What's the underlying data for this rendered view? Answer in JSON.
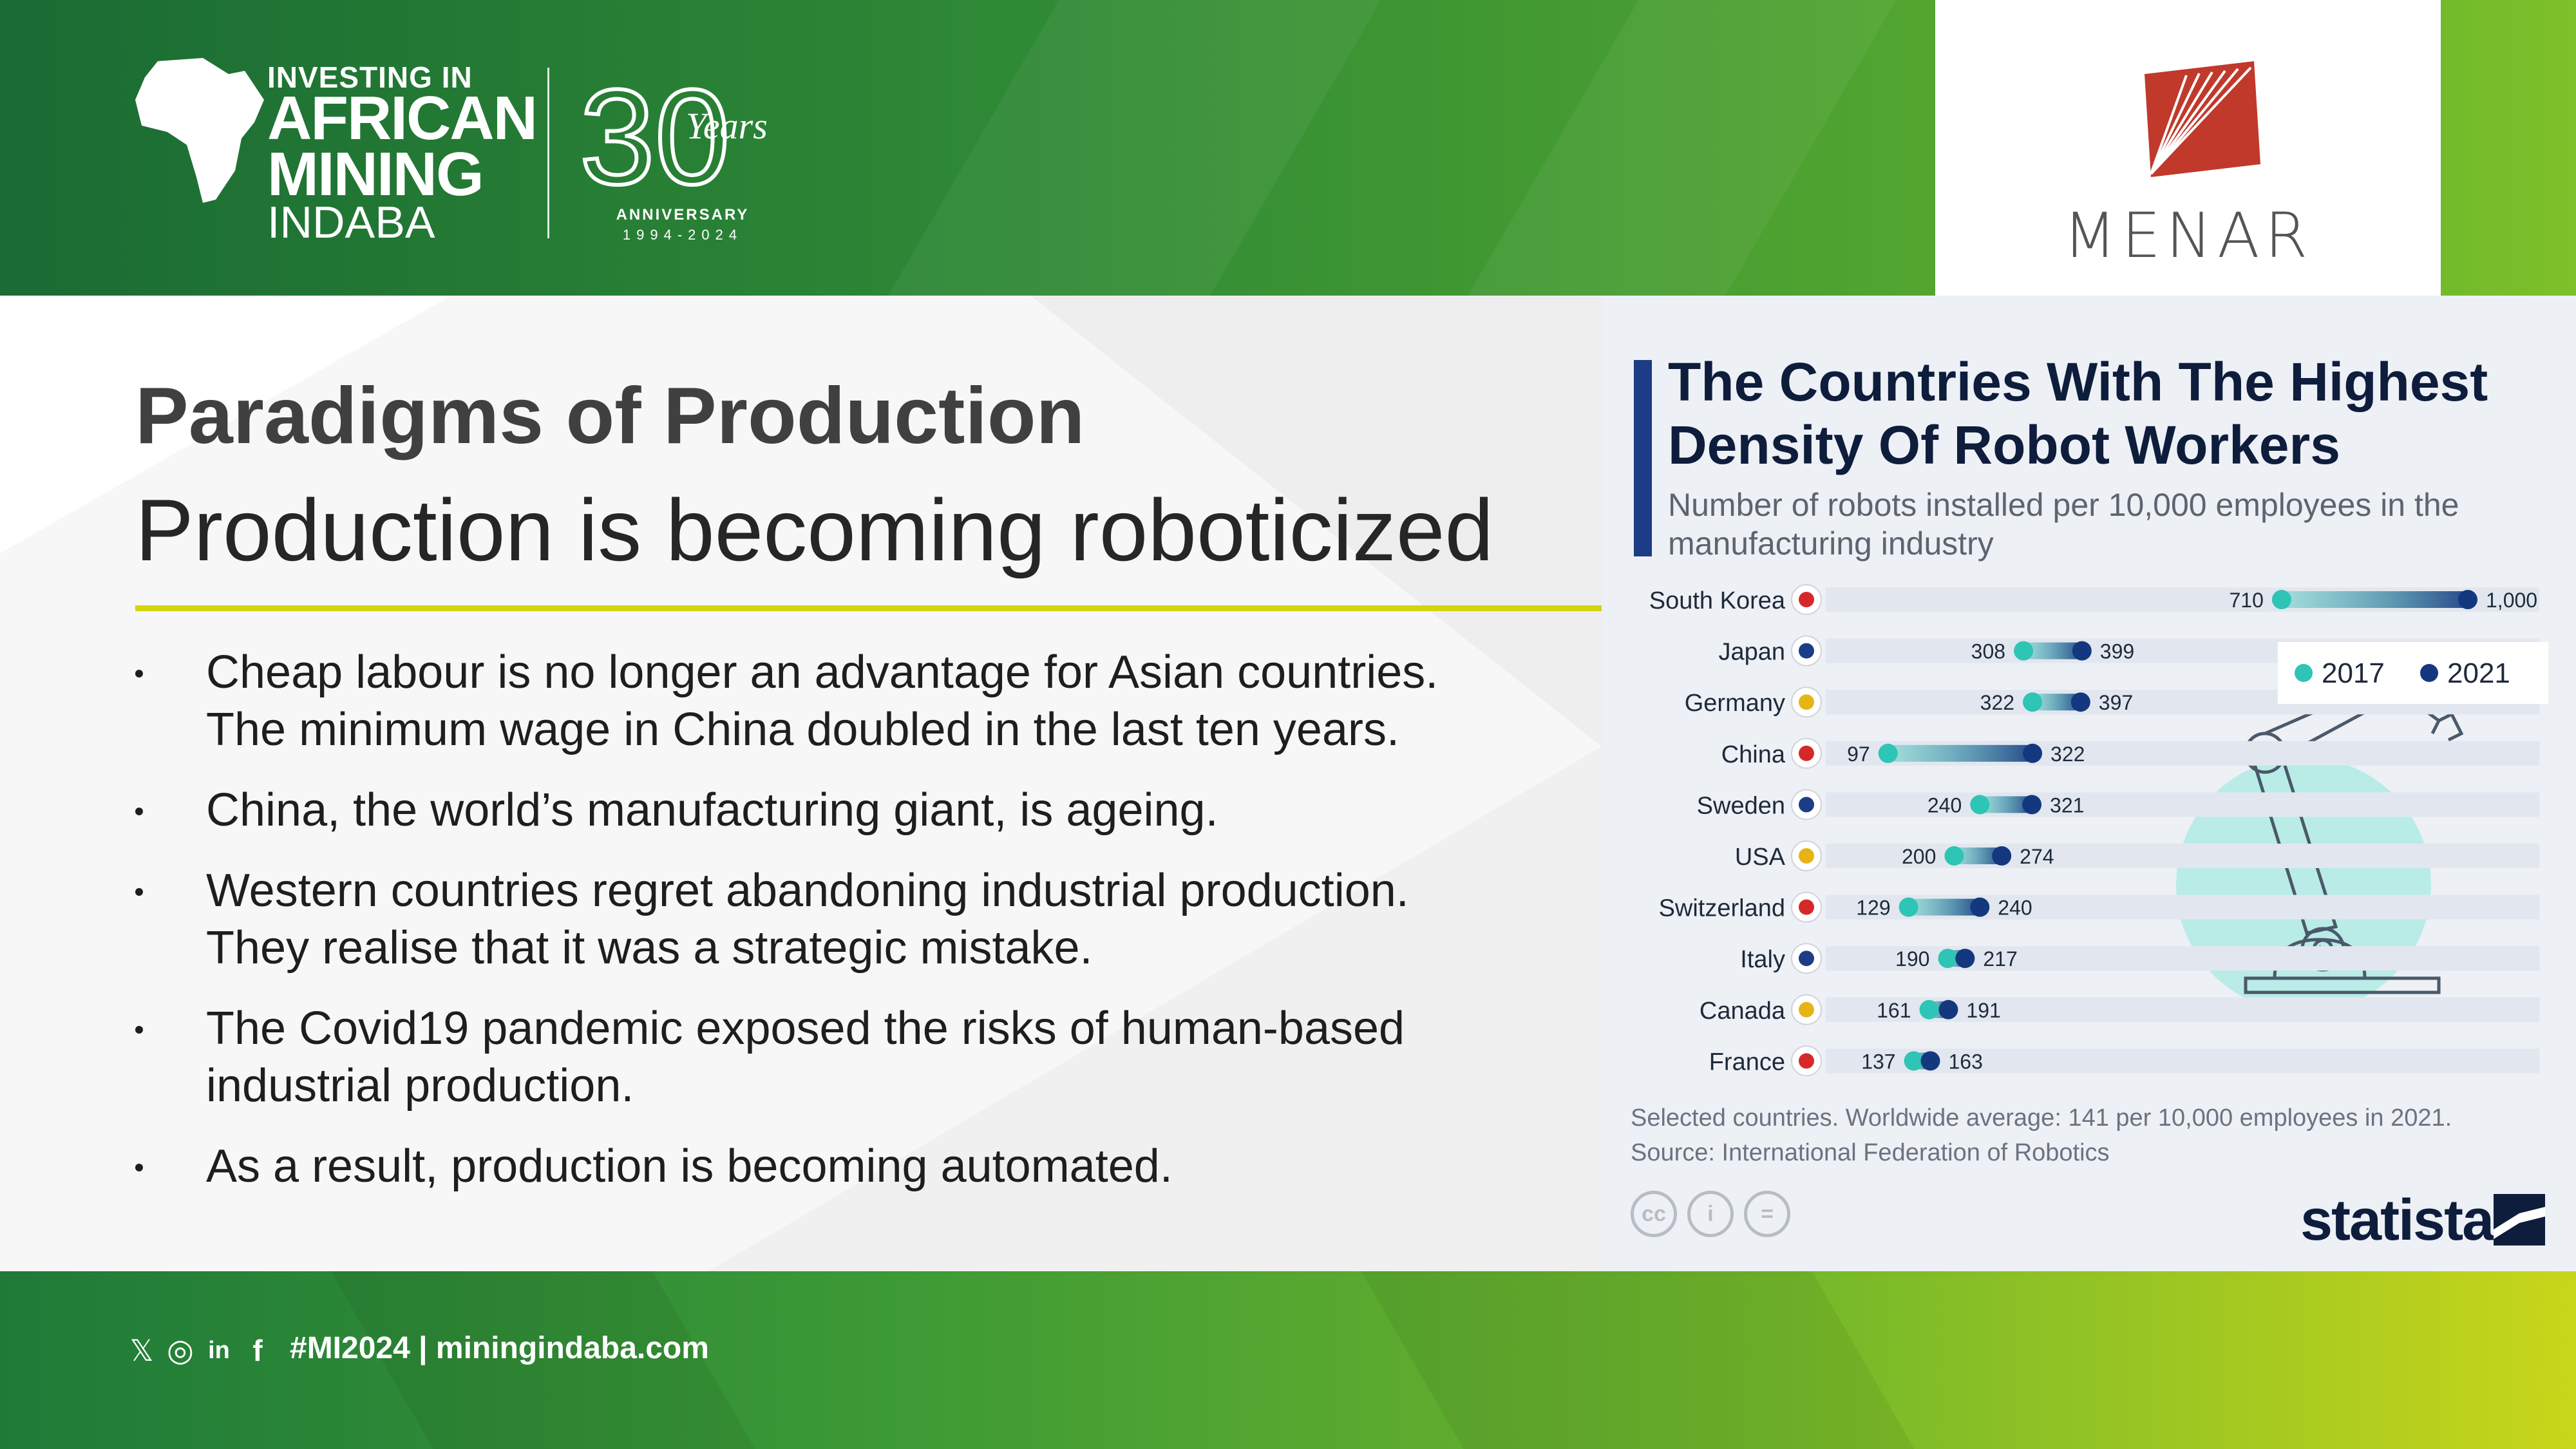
{
  "header": {
    "logo": {
      "line1": "INVESTING IN",
      "line2": "AFRICAN",
      "line3": "MINING",
      "line4": "INDABA"
    },
    "anniversary": {
      "graphic_number": "30",
      "graphic_word": "Years",
      "label": "ANNIVERSARY",
      "years": "1994-2024"
    },
    "partner": {
      "name": "MENAR",
      "logo_color": "#c0392b"
    }
  },
  "slide": {
    "heading": "Paradigms of Production",
    "subheading": "Production is becoming roboticized",
    "bullets": [
      "Cheap labour is no longer an advantage for Asian countries. The minimum wage in China doubled in the last ten years.",
      "China, the world’s manufacturing giant, is ageing.",
      "Western countries regret abandoning industrial production. They realise that it was a strategic mistake.",
      "The Covid19 pandemic exposed the risks of human-based industrial production.",
      "As a result, production is becoming automated."
    ]
  },
  "chart_data": {
    "type": "dumbbell",
    "title": "The Countries With The Highest Density Of Robot Workers",
    "subtitle": "Number of robots installed per 10,000 employees in the manufacturing industry",
    "categories": [
      "South Korea",
      "Japan",
      "Germany",
      "China",
      "Sweden",
      "USA",
      "Switzerland",
      "Italy",
      "Canada",
      "France"
    ],
    "series": [
      {
        "name": "2017",
        "color": "#2ec4b6",
        "values": [
          710,
          308,
          322,
          97,
          240,
          200,
          129,
          190,
          161,
          137
        ]
      },
      {
        "name": "2021",
        "color": "#14387f",
        "values": [
          1000,
          399,
          397,
          322,
          321,
          274,
          240,
          217,
          191,
          163
        ]
      }
    ],
    "value_labels": {
      "2017": [
        "710",
        "308",
        "322",
        "97",
        "240",
        "200",
        "129",
        "190",
        "161",
        "137"
      ],
      "2021": [
        "1,000",
        "399",
        "397",
        "322",
        "321",
        "274",
        "240",
        "217",
        "191",
        "163"
      ]
    },
    "xlim": [
      0,
      1000
    ],
    "legend_position": "top-right",
    "note": "Selected countries. Worldwide average: 141 per 10,000 employees in 2021.",
    "source": "Source: International Federation of Robotics",
    "brand": "statista",
    "license_icons": [
      "cc",
      "by",
      "nd"
    ],
    "license_labels": [
      "cc",
      "i",
      "="
    ]
  },
  "footer": {
    "social_icons": [
      "x-icon",
      "instagram-icon",
      "linkedin-icon",
      "facebook-icon"
    ],
    "social_glyphs": [
      "𝕏",
      "◎",
      "in",
      "f"
    ],
    "text": "#MI2024 | miningindaba.com"
  }
}
